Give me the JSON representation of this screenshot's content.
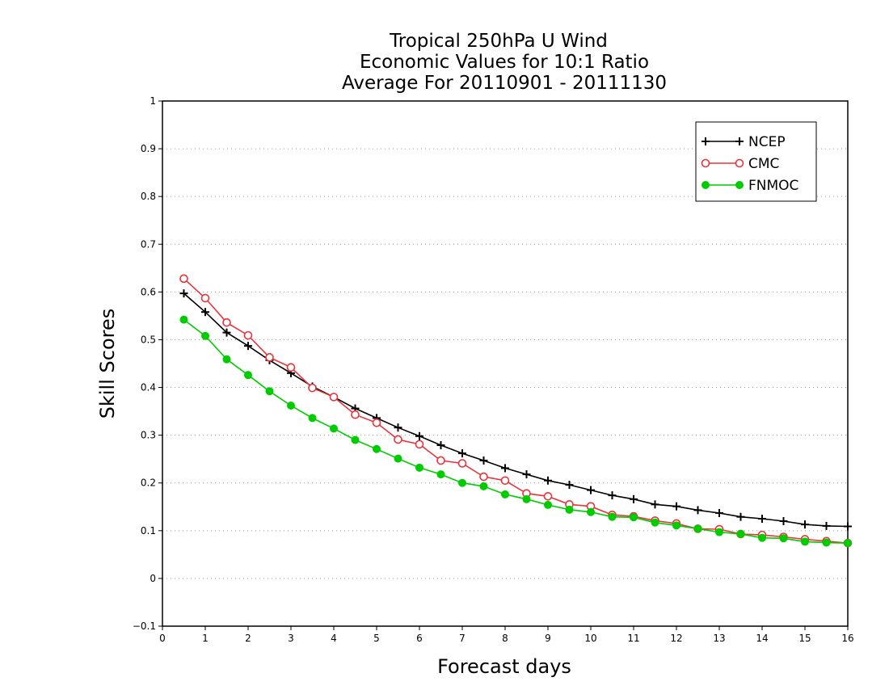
{
  "chart_data": {
    "type": "line",
    "title": [
      "Tropical 250hPa U Wind",
      "Economic Values for 10:1 Ratio",
      "Average For 20110901 - 20111130"
    ],
    "xlabel": "Forecast days",
    "ylabel": "Skill Scores",
    "xlim": [
      0,
      16
    ],
    "ylim": [
      -0.1,
      1
    ],
    "xticks": [
      "0",
      "1",
      "2",
      "3",
      "4",
      "5",
      "6",
      "7",
      "8",
      "9",
      "10",
      "11",
      "12",
      "13",
      "14",
      "15",
      "16"
    ],
    "yticks": [
      "−0.1",
      "0",
      "0.1",
      "0.2",
      "0.3",
      "0.4",
      "0.5",
      "0.6",
      "0.7",
      "0.8",
      "0.9",
      "1"
    ],
    "grid": "horizontal-dotted",
    "legend_position": "top-right",
    "x": [
      0.5,
      1,
      1.5,
      2,
      2.5,
      3,
      3.5,
      4,
      4.5,
      5,
      5.5,
      6,
      6.5,
      7,
      7.5,
      8,
      8.5,
      9,
      9.5,
      10,
      10.5,
      11,
      11.5,
      12,
      12.5,
      13,
      13.5,
      14,
      14.5,
      15,
      15.5,
      16
    ],
    "series": [
      {
        "name": "NCEP",
        "color": "#000000",
        "marker": "plus",
        "values": [
          0.597,
          0.558,
          0.515,
          0.487,
          0.457,
          0.43,
          0.402,
          0.38,
          0.356,
          0.336,
          0.316,
          0.298,
          0.279,
          0.262,
          0.247,
          0.231,
          0.218,
          0.205,
          0.196,
          0.185,
          0.174,
          0.166,
          0.155,
          0.151,
          0.143,
          0.137,
          0.129,
          0.125,
          0.12,
          0.113,
          0.11,
          0.109
        ]
      },
      {
        "name": "CMC",
        "color": "#e8343a",
        "marker": "open-circle",
        "values": [
          0.628,
          0.587,
          0.536,
          0.509,
          0.463,
          0.442,
          0.399,
          0.38,
          0.343,
          0.326,
          0.291,
          0.281,
          0.247,
          0.241,
          0.213,
          0.205,
          0.178,
          0.172,
          0.155,
          0.151,
          0.133,
          0.13,
          0.121,
          0.115,
          0.104,
          0.103,
          0.093,
          0.091,
          0.087,
          0.082,
          0.078,
          0.074
        ]
      },
      {
        "name": "FNMOC",
        "color": "#00cc00",
        "marker": "filled-circle",
        "values": [
          0.542,
          0.508,
          0.459,
          0.426,
          0.392,
          0.362,
          0.336,
          0.314,
          0.29,
          0.271,
          0.251,
          0.232,
          0.218,
          0.2,
          0.193,
          0.176,
          0.166,
          0.154,
          0.144,
          0.139,
          0.129,
          0.128,
          0.117,
          0.111,
          0.104,
          0.097,
          0.093,
          0.085,
          0.084,
          0.077,
          0.075,
          0.074
        ]
      }
    ]
  }
}
